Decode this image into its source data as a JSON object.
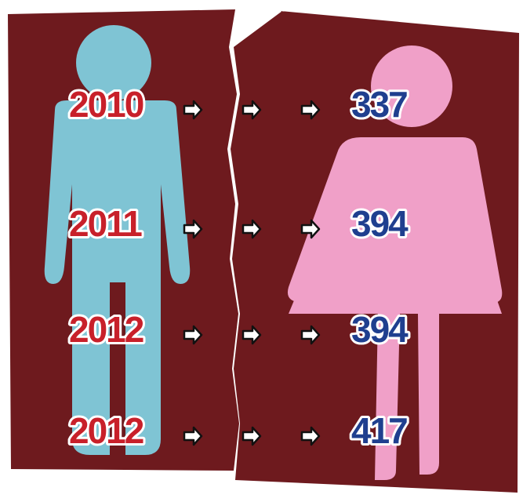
{
  "rows": [
    {
      "year": "2010",
      "value": 337
    },
    {
      "year": "2011",
      "value": 394
    },
    {
      "year": "2012",
      "value": 394
    },
    {
      "year": "2012",
      "value": 417
    }
  ]
}
